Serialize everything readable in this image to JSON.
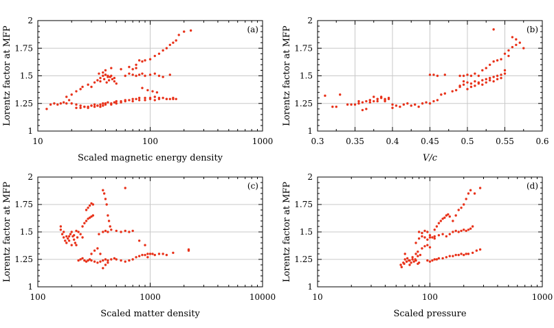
{
  "chart_data": [
    {
      "type": "scatter",
      "panel_label": "(a)",
      "xlabel": "Scaled magnetic energy density",
      "ylabel": "Lorentz factor at MFP",
      "xscale": "log",
      "xlim": [
        10,
        1000
      ],
      "ylim": [
        1,
        2
      ],
      "xticks": [
        10,
        100,
        1000
      ],
      "xtick_labels": [
        "10",
        "100",
        "1000"
      ],
      "yticks": [
        1,
        1.25,
        1.5,
        1.75,
        2
      ],
      "ytick_labels": [
        "1",
        "1.25",
        "1.5",
        "1.75",
        "2"
      ],
      "grid": true,
      "color": "#e8321a",
      "series": [
        {
          "x": [
            12,
            13,
            14,
            15,
            16,
            17,
            18,
            19,
            20,
            22,
            24,
            26,
            28,
            30,
            32,
            34,
            36,
            38,
            40,
            42,
            45,
            48,
            50,
            55,
            60,
            65,
            70,
            75,
            80,
            90,
            100,
            110,
            120,
            130,
            140,
            150,
            160,
            170,
            22,
            24,
            26,
            28,
            30,
            32,
            34,
            36,
            38,
            40,
            45,
            50,
            55,
            60,
            70,
            80,
            90,
            100,
            110,
            120,
            140,
            160,
            25,
            28,
            30,
            32,
            34,
            36,
            38,
            40,
            42,
            44,
            46,
            48,
            50,
            35,
            38,
            40,
            42,
            45,
            48,
            36,
            39,
            41,
            43,
            60,
            65,
            70,
            75,
            80,
            85,
            90,
            100,
            110,
            120,
            130,
            150,
            70,
            75,
            80,
            85,
            90,
            100,
            110,
            120,
            130,
            140,
            150,
            160,
            170,
            180,
            200,
            230,
            18,
            20,
            22,
            24,
            40,
            45,
            55,
            65,
            75,
            85,
            95,
            105,
            115
          ],
          "y": [
            1.2,
            1.24,
            1.25,
            1.24,
            1.25,
            1.26,
            1.25,
            1.28,
            1.25,
            1.24,
            1.23,
            1.22,
            1.22,
            1.23,
            1.24,
            1.23,
            1.24,
            1.25,
            1.25,
            1.26,
            1.25,
            1.26,
            1.27,
            1.27,
            1.28,
            1.28,
            1.29,
            1.29,
            1.3,
            1.3,
            1.3,
            1.31,
            1.3,
            1.3,
            1.29,
            1.29,
            1.29,
            1.29,
            1.21,
            1.21,
            1.22,
            1.21,
            1.23,
            1.22,
            1.23,
            1.22,
            1.23,
            1.24,
            1.24,
            1.25,
            1.26,
            1.27,
            1.27,
            1.28,
            1.28,
            1.29,
            1.28,
            1.29,
            1.29,
            1.3,
            1.4,
            1.42,
            1.4,
            1.44,
            1.46,
            1.48,
            1.5,
            1.51,
            1.5,
            1.49,
            1.47,
            1.45,
            1.43,
            1.52,
            1.53,
            1.51,
            1.49,
            1.5,
            1.48,
            1.45,
            1.47,
            1.44,
            1.46,
            1.5,
            1.52,
            1.51,
            1.5,
            1.51,
            1.52,
            1.5,
            1.51,
            1.52,
            1.5,
            1.49,
            1.51,
            1.56,
            1.6,
            1.64,
            1.63,
            1.64,
            1.65,
            1.68,
            1.7,
            1.73,
            1.75,
            1.78,
            1.8,
            1.82,
            1.87,
            1.9,
            1.91,
            1.31,
            1.33,
            1.36,
            1.38,
            1.55,
            1.57,
            1.56,
            1.58,
            1.57,
            1.39,
            1.37,
            1.36,
            1.35
          ]
        }
      ]
    },
    {
      "type": "scatter",
      "panel_label": "(b)",
      "xlabel": "V/c",
      "ylabel": "Lorentz factor at MFP",
      "xscale": "linear",
      "xlim": [
        0.3,
        0.6
      ],
      "ylim": [
        1,
        2
      ],
      "xticks": [
        0.3,
        0.35,
        0.4,
        0.45,
        0.5,
        0.55,
        0.6
      ],
      "xtick_labels": [
        "0.3",
        "0.35",
        "0.4",
        "0.45",
        "0.5",
        "0.55",
        "0.6"
      ],
      "yticks": [
        1,
        1.25,
        1.5,
        1.75,
        2
      ],
      "ytick_labels": [
        "1",
        "1.25",
        "1.5",
        "1.75",
        "2"
      ],
      "grid": true,
      "color": "#e8321a",
      "series": [
        {
          "x": [
            0.31,
            0.32,
            0.325,
            0.33,
            0.34,
            0.345,
            0.35,
            0.355,
            0.36,
            0.365,
            0.37,
            0.375,
            0.38,
            0.385,
            0.39,
            0.395,
            0.4,
            0.405,
            0.41,
            0.415,
            0.42,
            0.425,
            0.43,
            0.435,
            0.44,
            0.445,
            0.45,
            0.455,
            0.46,
            0.465,
            0.47,
            0.36,
            0.365,
            0.37,
            0.375,
            0.38,
            0.385,
            0.39,
            0.395,
            0.4,
            0.355,
            0.37,
            0.38,
            0.39,
            0.48,
            0.485,
            0.49,
            0.495,
            0.5,
            0.505,
            0.51,
            0.515,
            0.52,
            0.525,
            0.53,
            0.535,
            0.54,
            0.545,
            0.55,
            0.5,
            0.505,
            0.51,
            0.515,
            0.52,
            0.525,
            0.53,
            0.535,
            0.54,
            0.545,
            0.55,
            0.495,
            0.49,
            0.45,
            0.455,
            0.46,
            0.47,
            0.49,
            0.495,
            0.5,
            0.505,
            0.51,
            0.515,
            0.52,
            0.525,
            0.53,
            0.535,
            0.54,
            0.545,
            0.55,
            0.555,
            0.56,
            0.565,
            0.57,
            0.575,
            0.535,
            0.56,
            0.565,
            0.555
          ],
          "y": [
            1.32,
            1.22,
            1.22,
            1.33,
            1.24,
            1.24,
            1.24,
            1.25,
            1.26,
            1.27,
            1.28,
            1.27,
            1.29,
            1.3,
            1.29,
            1.3,
            1.24,
            1.23,
            1.22,
            1.24,
            1.25,
            1.23,
            1.24,
            1.22,
            1.25,
            1.26,
            1.25,
            1.27,
            1.28,
            1.33,
            1.34,
            1.19,
            1.2,
            1.28,
            1.31,
            1.29,
            1.31,
            1.27,
            1.29,
            1.21,
            1.27,
            1.26,
            1.27,
            1.28,
            1.36,
            1.37,
            1.4,
            1.42,
            1.44,
            1.43,
            1.45,
            1.44,
            1.46,
            1.47,
            1.48,
            1.49,
            1.5,
            1.51,
            1.52,
            1.38,
            1.4,
            1.41,
            1.43,
            1.42,
            1.44,
            1.46,
            1.45,
            1.47,
            1.48,
            1.55,
            1.45,
            1.41,
            1.51,
            1.51,
            1.5,
            1.51,
            1.5,
            1.5,
            1.51,
            1.5,
            1.52,
            1.5,
            1.55,
            1.57,
            1.6,
            1.63,
            1.64,
            1.65,
            1.7,
            1.73,
            1.76,
            1.78,
            1.8,
            1.75,
            1.92,
            1.85,
            1.83,
            1.68
          ]
        }
      ]
    },
    {
      "type": "scatter",
      "panel_label": "(c)",
      "xlabel": "Scaled matter density",
      "ylabel": "Lorentz factor at MFP",
      "xscale": "log",
      "xlim": [
        100,
        10000
      ],
      "ylim": [
        1,
        2
      ],
      "xticks": [
        100,
        1000,
        10000
      ],
      "xtick_labels": [
        "100",
        "1000",
        "10000"
      ],
      "yticks": [
        1,
        1.25,
        1.5,
        1.75,
        2
      ],
      "ytick_labels": [
        "1",
        "1.25",
        "1.5",
        "1.75",
        "2"
      ],
      "grid": true,
      "color": "#e8321a",
      "series": [
        {
          "x": [
            160,
            165,
            170,
            175,
            180,
            185,
            190,
            195,
            200,
            205,
            210,
            215,
            220,
            225,
            230,
            240,
            250,
            160,
            170,
            180,
            190,
            200,
            210,
            220,
            230,
            240,
            250,
            260,
            270,
            280,
            290,
            300,
            320,
            340,
            360,
            380,
            400,
            420,
            450,
            480,
            500,
            550,
            600,
            650,
            700,
            750,
            800,
            850,
            900,
            950,
            1000,
            1050,
            1100,
            1200,
            1300,
            1400,
            1600,
            2200,
            380,
            390,
            400,
            410,
            420,
            430,
            440,
            350,
            380,
            400,
            420,
            450,
            500,
            550,
            600,
            650,
            700,
            250,
            260,
            270,
            280,
            290,
            300,
            310,
            270,
            280,
            290,
            300,
            310,
            300,
            320,
            340,
            360,
            380,
            400,
            420,
            600,
            800,
            900,
            950,
            2200
          ],
          "y": [
            1.52,
            1.48,
            1.45,
            1.42,
            1.4,
            1.44,
            1.46,
            1.48,
            1.5,
            1.46,
            1.43,
            1.4,
            1.38,
            1.45,
            1.5,
            1.48,
            1.45,
            1.55,
            1.5,
            1.46,
            1.42,
            1.38,
            1.47,
            1.51,
            1.24,
            1.25,
            1.26,
            1.24,
            1.23,
            1.24,
            1.25,
            1.24,
            1.23,
            1.22,
            1.23,
            1.24,
            1.25,
            1.24,
            1.25,
            1.26,
            1.25,
            1.24,
            1.23,
            1.24,
            1.25,
            1.27,
            1.28,
            1.29,
            1.29,
            1.3,
            1.3,
            1.3,
            1.29,
            1.3,
            1.3,
            1.29,
            1.31,
            1.34,
            1.88,
            1.85,
            1.8,
            1.75,
            1.65,
            1.6,
            1.55,
            1.48,
            1.5,
            1.51,
            1.5,
            1.52,
            1.51,
            1.5,
            1.51,
            1.5,
            1.51,
            1.55,
            1.58,
            1.6,
            1.62,
            1.63,
            1.64,
            1.65,
            1.7,
            1.72,
            1.74,
            1.76,
            1.75,
            1.3,
            1.33,
            1.35,
            1.3,
            1.17,
            1.2,
            1.22,
            1.9,
            1.42,
            1.38,
            1.27,
            1.33
          ]
        }
      ]
    },
    {
      "type": "scatter",
      "panel_label": "(d)",
      "xlabel": "Scaled pressure",
      "ylabel": "Lorentz factor at MFP",
      "xscale": "log",
      "xlim": [
        10,
        1000
      ],
      "ylim": [
        1,
        2
      ],
      "xticks": [
        10,
        100,
        1000
      ],
      "xtick_labels": [
        "10",
        "100",
        "1000"
      ],
      "yticks": [
        1,
        1.25,
        1.5,
        1.75,
        2
      ],
      "ytick_labels": [
        "1",
        "1.25",
        "1.5",
        "1.75",
        "2"
      ],
      "grid": true,
      "color": "#e8321a",
      "series": [
        {
          "x": [
            55,
            58,
            60,
            62,
            65,
            68,
            70,
            72,
            75,
            78,
            80,
            60,
            63,
            66,
            70,
            74,
            78,
            56,
            59,
            62,
            66,
            95,
            100,
            105,
            110,
            115,
            120,
            130,
            140,
            150,
            160,
            170,
            180,
            190,
            200,
            210,
            220,
            240,
            260,
            280,
            75,
            80,
            85,
            90,
            95,
            100,
            105,
            110,
            80,
            85,
            90,
            95,
            100,
            110,
            120,
            130,
            140,
            150,
            160,
            170,
            180,
            190,
            200,
            210,
            220,
            230,
            240,
            110,
            115,
            120,
            125,
            130,
            135,
            140,
            145,
            150,
            160,
            170,
            180,
            190,
            200,
            210,
            220,
            230,
            250,
            280,
            85,
            90,
            95,
            100,
            75,
            78,
            82
          ],
          "y": [
            1.2,
            1.22,
            1.25,
            1.23,
            1.24,
            1.22,
            1.25,
            1.23,
            1.24,
            1.21,
            1.22,
            1.3,
            1.26,
            1.24,
            1.27,
            1.25,
            1.28,
            1.18,
            1.21,
            1.23,
            1.2,
            1.24,
            1.23,
            1.24,
            1.25,
            1.25,
            1.26,
            1.26,
            1.27,
            1.28,
            1.28,
            1.29,
            1.29,
            1.3,
            1.29,
            1.3,
            1.3,
            1.31,
            1.33,
            1.34,
            1.4,
            1.44,
            1.46,
            1.45,
            1.43,
            1.47,
            1.45,
            1.46,
            1.5,
            1.49,
            1.51,
            1.5,
            1.45,
            1.44,
            1.47,
            1.48,
            1.46,
            1.48,
            1.5,
            1.51,
            1.5,
            1.51,
            1.52,
            1.51,
            1.52,
            1.53,
            1.55,
            1.52,
            1.55,
            1.58,
            1.6,
            1.62,
            1.63,
            1.65,
            1.66,
            1.64,
            1.6,
            1.65,
            1.7,
            1.72,
            1.75,
            1.8,
            1.85,
            1.88,
            1.85,
            1.9,
            1.35,
            1.37,
            1.38,
            1.36,
            1.3,
            1.32,
            1.29
          ]
        }
      ]
    }
  ]
}
